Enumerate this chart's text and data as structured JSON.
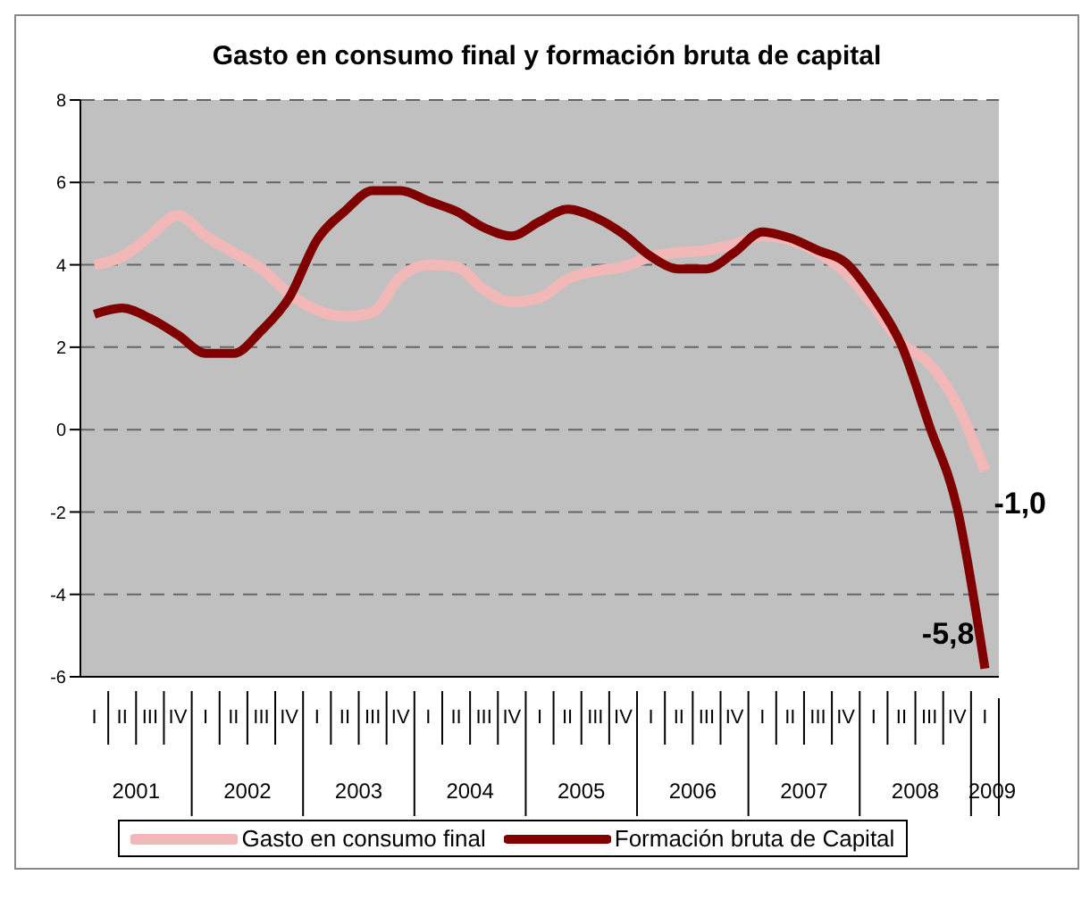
{
  "chart_data": {
    "type": "line",
    "title": "Gasto en consumo final y formación bruta de capital",
    "categories": [
      "I",
      "II",
      "III",
      "IV",
      "I",
      "II",
      "III",
      "IV",
      "I",
      "II",
      "III",
      "IV",
      "I",
      "II",
      "III",
      "IV",
      "I",
      "II",
      "III",
      "IV",
      "I",
      "II",
      "III",
      "IV",
      "I",
      "II",
      "III",
      "IV",
      "I",
      "II",
      "III",
      "IV",
      "I"
    ],
    "annotations": [
      "2001",
      "2002",
      "2003",
      "2004",
      "2005",
      "2006",
      "2007",
      "2008",
      "2009"
    ],
    "series": [
      {
        "name": "Gasto en consumo final",
        "color": "#f2b8b8",
        "values": [
          4.0,
          4.2,
          4.7,
          5.2,
          4.7,
          4.3,
          3.9,
          3.3,
          2.9,
          2.75,
          2.85,
          3.7,
          4.0,
          3.95,
          3.4,
          3.1,
          3.2,
          3.65,
          3.85,
          3.95,
          4.2,
          4.3,
          4.35,
          4.5,
          4.7,
          4.6,
          4.3,
          3.8,
          3.0,
          2.1,
          1.6,
          0.6,
          -1.0
        ],
        "value_labels": [
          null,
          null,
          null,
          null,
          null,
          null,
          null,
          null,
          null,
          null,
          null,
          null,
          null,
          null,
          null,
          null,
          null,
          null,
          null,
          null,
          null,
          null,
          null,
          null,
          null,
          null,
          null,
          null,
          null,
          null,
          null,
          null,
          "-1,0"
        ]
      },
      {
        "name": "Formación bruta de Capital",
        "color": "#800000",
        "values": [
          2.8,
          2.95,
          2.7,
          2.3,
          1.85,
          1.85,
          2.4,
          3.2,
          4.6,
          5.3,
          5.8,
          5.8,
          5.55,
          5.3,
          4.9,
          4.7,
          5.05,
          5.35,
          5.15,
          4.75,
          4.2,
          3.9,
          3.9,
          4.3,
          4.8,
          4.65,
          4.35,
          4.05,
          3.2,
          2.05,
          0.1,
          -1.9,
          -5.8
        ],
        "value_labels": [
          null,
          null,
          null,
          null,
          null,
          null,
          null,
          null,
          null,
          null,
          null,
          null,
          null,
          null,
          null,
          null,
          null,
          null,
          null,
          null,
          null,
          null,
          null,
          null,
          null,
          null,
          null,
          null,
          null,
          null,
          null,
          null,
          "-5,8"
        ]
      }
    ],
    "ylim": [
      -6,
      8
    ],
    "yticks": [
      -6,
      -4,
      -2,
      0,
      2,
      4,
      6,
      8
    ],
    "grid": "y",
    "legend": "bottom",
    "marker": "none",
    "line_style": "solid"
  }
}
